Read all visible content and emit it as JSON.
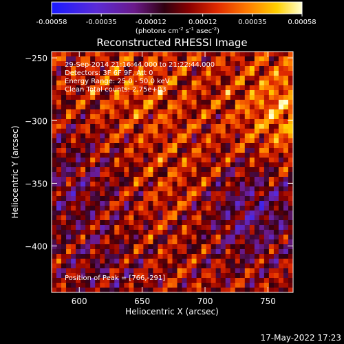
{
  "colorbar": {
    "tick_labels": [
      "-0.00058",
      "-0.00035",
      "-0.00012",
      "0.00012",
      "0.00035",
      "0.00058"
    ],
    "tick_values": [
      -0.00058,
      -0.00035,
      -0.00012,
      0.00012,
      0.00035,
      0.00058
    ],
    "range": [
      -0.00058,
      0.00058
    ],
    "colormap": "blue-purple-red-yellow-white"
  },
  "units_label": {
    "pre": "(photons cm",
    "exp1": "-2",
    "mid1": " s",
    "exp2": "-1",
    "mid2": " asec",
    "exp3": "-2",
    "post": ")"
  },
  "title": "Reconstructed RHESSI Image",
  "info_lines": [
    "29-Sep-2014 21:16:44.000 to 21:22:44.000",
    "Detectors: 3F 6F 9F, Att 0",
    "Energy Range: 25.0 - 50.0 keV",
    "Clean     Total counts: 2.75e+03"
  ],
  "peak_label": "Position of Peak = [766,-291]",
  "footer_timestamp": "17-May-2022 17:23",
  "chart_data": {
    "type": "heatmap",
    "title": "Reconstructed RHESSI Image",
    "xlabel": "Heliocentric X (arcsec)",
    "ylabel": "Heliocentric Y (arcsec)",
    "x_ticks": [
      600,
      650,
      700,
      750
    ],
    "x_tick_labels": [
      "600",
      "650",
      "700",
      "750"
    ],
    "y_ticks": [
      -250,
      -300,
      -350,
      -400
    ],
    "y_tick_labels": [
      "−250",
      "−300",
      "−350",
      "−400"
    ],
    "xlim": [
      578,
      770
    ],
    "ylim": [
      -437,
      -245
    ],
    "peak": [
      766,
      -291
    ],
    "value_range": [
      -0.00058,
      0.00058
    ]
  }
}
